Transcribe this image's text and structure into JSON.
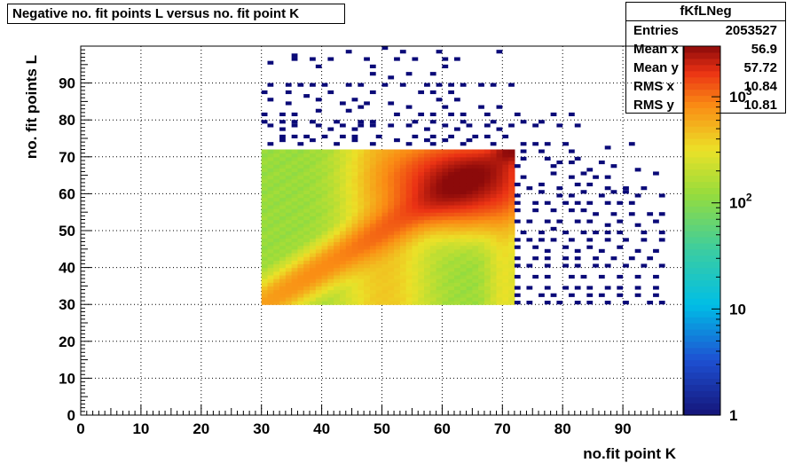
{
  "title": "Negative no. fit points L versus no. fit point K",
  "stats": {
    "name": "fKfLNeg",
    "rows": [
      {
        "label": "Entries",
        "value": "2053527"
      },
      {
        "label": "Mean x",
        "value": "56.9"
      },
      {
        "label": "Mean y",
        "value": "57.72"
      },
      {
        "label": "RMS x",
        "value": "10.84"
      },
      {
        "label": "RMS y",
        "value": "10.81"
      }
    ]
  },
  "colors": {
    "sparse_bin": "#0a0a78",
    "frame": "#000000",
    "grid": "#000000"
  },
  "chart_data": {
    "type": "heatmap",
    "title": "Negative no. fit points L versus no. fit point K",
    "xlabel": "no.fit point K",
    "ylabel": "no. fit points  L",
    "xlim": [
      0,
      100
    ],
    "ylim": [
      0,
      100
    ],
    "xticks": [
      0,
      10,
      20,
      30,
      40,
      50,
      60,
      70,
      80,
      90
    ],
    "yticks": [
      0,
      10,
      20,
      30,
      40,
      50,
      60,
      70,
      80,
      90
    ],
    "grid": true,
    "log_z": true,
    "zlim": [
      1,
      3000
    ],
    "zticks": [
      {
        "value": 1,
        "label": "1"
      },
      {
        "value": 10,
        "label": "10"
      },
      {
        "value": 100,
        "label": "10",
        "sup": "2"
      },
      {
        "value": 1000,
        "label": "10",
        "sup": "3"
      }
    ],
    "dense_region": {
      "x_range": [
        30,
        72
      ],
      "y_range": [
        30,
        72
      ],
      "description_bins": "1x1 bins with counts ~100 to ~3000, peaking near K=63,L=63 and along diagonal toward K=30,L=30"
    },
    "sparse_bins": [
      [
        50,
        99
      ],
      [
        35,
        97
      ],
      [
        44,
        98
      ],
      [
        53,
        98
      ],
      [
        59,
        98
      ],
      [
        69,
        98
      ],
      [
        31,
        95
      ],
      [
        35,
        96
      ],
      [
        38,
        96
      ],
      [
        41,
        96
      ],
      [
        47,
        96
      ],
      [
        52,
        96
      ],
      [
        55,
        96
      ],
      [
        60,
        96
      ],
      [
        62,
        96
      ],
      [
        39,
        94
      ],
      [
        48,
        94
      ],
      [
        60,
        94
      ],
      [
        48,
        92
      ],
      [
        51,
        91
      ],
      [
        54,
        92
      ],
      [
        58,
        92
      ],
      [
        31,
        89
      ],
      [
        34,
        89
      ],
      [
        36,
        89
      ],
      [
        38,
        89
      ],
      [
        40,
        89
      ],
      [
        44,
        89
      ],
      [
        46,
        89
      ],
      [
        50,
        89
      ],
      [
        53,
        89
      ],
      [
        57,
        89
      ],
      [
        59,
        89
      ],
      [
        61,
        89
      ],
      [
        63,
        89
      ],
      [
        66,
        89
      ],
      [
        68,
        89
      ],
      [
        71,
        89
      ],
      [
        30,
        87
      ],
      [
        34,
        87
      ],
      [
        41,
        87
      ],
      [
        48,
        87
      ],
      [
        56,
        87
      ],
      [
        58,
        87
      ],
      [
        61,
        87
      ],
      [
        31,
        85
      ],
      [
        37,
        86
      ],
      [
        39,
        85
      ],
      [
        45,
        85
      ],
      [
        59,
        85
      ],
      [
        62,
        85
      ],
      [
        34,
        84
      ],
      [
        43,
        84
      ],
      [
        46,
        83
      ],
      [
        47,
        84
      ],
      [
        51,
        84
      ],
      [
        54,
        83
      ],
      [
        60,
        83
      ],
      [
        66,
        83
      ],
      [
        69,
        83
      ],
      [
        30,
        81
      ],
      [
        33,
        81
      ],
      [
        35,
        81
      ],
      [
        39,
        82
      ],
      [
        44,
        82
      ],
      [
        52,
        81
      ],
      [
        56,
        81
      ],
      [
        58,
        81
      ],
      [
        61,
        81
      ],
      [
        63,
        81
      ],
      [
        67,
        81
      ],
      [
        72,
        81
      ],
      [
        78,
        81
      ],
      [
        81,
        81
      ],
      [
        30,
        79
      ],
      [
        33,
        79
      ],
      [
        35,
        79
      ],
      [
        38,
        79
      ],
      [
        42,
        79
      ],
      [
        46,
        79
      ],
      [
        48,
        79
      ],
      [
        55,
        79
      ],
      [
        58,
        79
      ],
      [
        63,
        79
      ],
      [
        68,
        79
      ],
      [
        73,
        79
      ],
      [
        76,
        79
      ],
      [
        31,
        78
      ],
      [
        35,
        78
      ],
      [
        39,
        78
      ],
      [
        43,
        78
      ],
      [
        46,
        78
      ],
      [
        48,
        78
      ],
      [
        51,
        78
      ],
      [
        54,
        78
      ],
      [
        60,
        78
      ],
      [
        64,
        78
      ],
      [
        67,
        78
      ],
      [
        71,
        78
      ],
      [
        75,
        78
      ],
      [
        79,
        78
      ],
      [
        82,
        78
      ],
      [
        33,
        77
      ],
      [
        41,
        77
      ],
      [
        45,
        77
      ],
      [
        57,
        77
      ],
      [
        62,
        77
      ],
      [
        69,
        77
      ],
      [
        33,
        75
      ],
      [
        35,
        75
      ],
      [
        37,
        75
      ],
      [
        40,
        75
      ],
      [
        43,
        75
      ],
      [
        45,
        75
      ],
      [
        49,
        75
      ],
      [
        55,
        75
      ],
      [
        58,
        75
      ],
      [
        61,
        75
      ],
      [
        65,
        75
      ],
      [
        67,
        75
      ],
      [
        70,
        75
      ],
      [
        33,
        74
      ],
      [
        38,
        74
      ],
      [
        45,
        74
      ],
      [
        52,
        74
      ],
      [
        57,
        74
      ],
      [
        60,
        74
      ],
      [
        64,
        74
      ],
      [
        31,
        73
      ],
      [
        36,
        73
      ],
      [
        42,
        73
      ],
      [
        48,
        73
      ],
      [
        54,
        73
      ],
      [
        58,
        73
      ],
      [
        63,
        73
      ],
      [
        68,
        73
      ],
      [
        73,
        73
      ],
      [
        75,
        73
      ],
      [
        77,
        73
      ],
      [
        80,
        73
      ],
      [
        73,
        71
      ],
      [
        76,
        71
      ],
      [
        81,
        71
      ],
      [
        87,
        72
      ],
      [
        91,
        73
      ],
      [
        73,
        69
      ],
      [
        77,
        69
      ],
      [
        79,
        68
      ],
      [
        82,
        69
      ],
      [
        86,
        68
      ],
      [
        72,
        67
      ],
      [
        78,
        67
      ],
      [
        81,
        68
      ],
      [
        84,
        66
      ],
      [
        88,
        67
      ],
      [
        92,
        66
      ],
      [
        73,
        64
      ],
      [
        78,
        65
      ],
      [
        81,
        64
      ],
      [
        83,
        65
      ],
      [
        85,
        64
      ],
      [
        87,
        64
      ],
      [
        95,
        65
      ],
      [
        72,
        62
      ],
      [
        74,
        61
      ],
      [
        76,
        62
      ],
      [
        79,
        61
      ],
      [
        82,
        62
      ],
      [
        84,
        62
      ],
      [
        87,
        61
      ],
      [
        90,
        61
      ],
      [
        93,
        61
      ],
      [
        72,
        59
      ],
      [
        76,
        60
      ],
      [
        79,
        59
      ],
      [
        81,
        59
      ],
      [
        83,
        60
      ],
      [
        86,
        59
      ],
      [
        88,
        60
      ],
      [
        90,
        60
      ],
      [
        92,
        59
      ],
      [
        96,
        59
      ],
      [
        72,
        57
      ],
      [
        75,
        57
      ],
      [
        77,
        57
      ],
      [
        80,
        57
      ],
      [
        82,
        57
      ],
      [
        84,
        57
      ],
      [
        87,
        57
      ],
      [
        89,
        57
      ],
      [
        91,
        57
      ],
      [
        72,
        55
      ],
      [
        75,
        55
      ],
      [
        78,
        55
      ],
      [
        81,
        55
      ],
      [
        83,
        55
      ],
      [
        85,
        54
      ],
      [
        88,
        54
      ],
      [
        91,
        54
      ],
      [
        94,
        54
      ],
      [
        96,
        54
      ],
      [
        72,
        52
      ],
      [
        74,
        52
      ],
      [
        77,
        52
      ],
      [
        79,
        52
      ],
      [
        82,
        52
      ],
      [
        84,
        52
      ],
      [
        87,
        51
      ],
      [
        89,
        52
      ],
      [
        92,
        51
      ],
      [
        95,
        52
      ],
      [
        73,
        49
      ],
      [
        76,
        49
      ],
      [
        78,
        50
      ],
      [
        80,
        49
      ],
      [
        83,
        49
      ],
      [
        85,
        49
      ],
      [
        87,
        49
      ],
      [
        89,
        49
      ],
      [
        93,
        49
      ],
      [
        96,
        49
      ],
      [
        72,
        47
      ],
      [
        74,
        47
      ],
      [
        76,
        47
      ],
      [
        78,
        47
      ],
      [
        81,
        47
      ],
      [
        84,
        47
      ],
      [
        87,
        47
      ],
      [
        90,
        47
      ],
      [
        93,
        47
      ],
      [
        96,
        47
      ],
      [
        72,
        45
      ],
      [
        75,
        45
      ],
      [
        77,
        44
      ],
      [
        80,
        45
      ],
      [
        82,
        44
      ],
      [
        84,
        45
      ],
      [
        86,
        44
      ],
      [
        89,
        45
      ],
      [
        92,
        44
      ],
      [
        95,
        44
      ],
      [
        72,
        42
      ],
      [
        75,
        42
      ],
      [
        77,
        42
      ],
      [
        80,
        42
      ],
      [
        82,
        42
      ],
      [
        85,
        42
      ],
      [
        88,
        42
      ],
      [
        91,
        42
      ],
      [
        94,
        42
      ],
      [
        72,
        40
      ],
      [
        74,
        40
      ],
      [
        77,
        40
      ],
      [
        80,
        40
      ],
      [
        82,
        40
      ],
      [
        85,
        40
      ],
      [
        87,
        40
      ],
      [
        90,
        40
      ],
      [
        93,
        40
      ],
      [
        96,
        40
      ],
      [
        72,
        37
      ],
      [
        75,
        37
      ],
      [
        77,
        37
      ],
      [
        81,
        37
      ],
      [
        83,
        37
      ],
      [
        86,
        37
      ],
      [
        89,
        37
      ],
      [
        92,
        37
      ],
      [
        95,
        37
      ],
      [
        72,
        34
      ],
      [
        74,
        34
      ],
      [
        77,
        34
      ],
      [
        80,
        34
      ],
      [
        82,
        34
      ],
      [
        84,
        34
      ],
      [
        87,
        34
      ],
      [
        89,
        34
      ],
      [
        92,
        34
      ],
      [
        95,
        34
      ],
      [
        72,
        32
      ],
      [
        76,
        32
      ],
      [
        78,
        32
      ],
      [
        81,
        32
      ],
      [
        84,
        32
      ],
      [
        86,
        32
      ],
      [
        89,
        32
      ],
      [
        92,
        32
      ],
      [
        95,
        32
      ],
      [
        72,
        30
      ],
      [
        74,
        30
      ],
      [
        77,
        30
      ],
      [
        79,
        30
      ],
      [
        82,
        30
      ],
      [
        84,
        30
      ],
      [
        87,
        30
      ],
      [
        90,
        30
      ],
      [
        94,
        30
      ],
      [
        96,
        30
      ]
    ]
  }
}
